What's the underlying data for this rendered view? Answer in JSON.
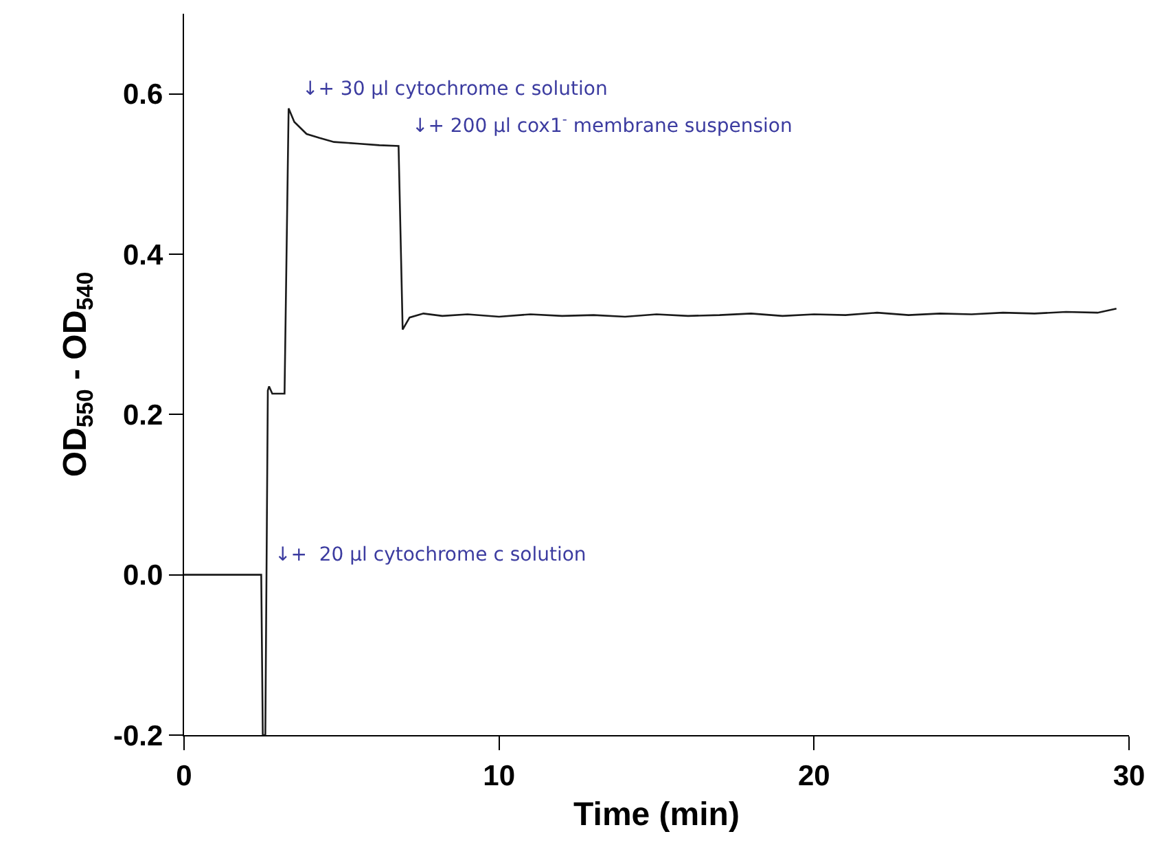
{
  "chart_data": {
    "type": "line",
    "xlabel": "Time (min)",
    "ylabel": "OD$_{550}$ - OD$_{540}$",
    "x": [
      0,
      2.45,
      2.5,
      2.58,
      2.66,
      2.7,
      2.8,
      3.19,
      3.32,
      3.5,
      3.89,
      4.3,
      4.76,
      5.5,
      6.2,
      6.81,
      6.94,
      7.16,
      7.6,
      8.2,
      9,
      10,
      11,
      12,
      13,
      14,
      15,
      16,
      17,
      18,
      19,
      20,
      21,
      22,
      23,
      24,
      25,
      26,
      27,
      28,
      29,
      29.6
    ],
    "series": [
      {
        "color": "#1a1a1a",
        "values": [
          0,
          0,
          -0.2,
          -0.2,
          0.23,
          0.235,
          0.226,
          0.226,
          0.582,
          0.565,
          0.55,
          0.545,
          0.54,
          0.538,
          0.536,
          0.535,
          0.306,
          0.321,
          0.326,
          0.323,
          0.325,
          0.322,
          0.325,
          0.323,
          0.324,
          0.322,
          0.325,
          0.323,
          0.324,
          0.326,
          0.323,
          0.325,
          0.324,
          0.327,
          0.324,
          0.326,
          0.325,
          0.327,
          0.326,
          0.328,
          0.327,
          0.332
        ]
      }
    ],
    "xlim": [
      0,
      30
    ],
    "xticks": [
      0,
      10,
      20,
      30
    ],
    "ylim": [
      -0.2,
      0.7
    ],
    "yticks": [
      -0.2,
      {
        "value": 0,
        "label": "0.0"
      },
      0.2,
      0.4,
      0.6
    ],
    "grid": false,
    "marker": "none",
    "line_style": "solid",
    "annotations": [
      {
        "text": "↓+  20 µl cytochrome c solution",
        "x": 2.45,
        "y": 0
      },
      {
        "text": "↓+ 30 µl cytochrome c solution",
        "x": 3.32,
        "y": 0.582
      },
      {
        "text": "↓+ 200 µl cox1$^{-}$ membrane suspension",
        "x": 6.81,
        "y": 0.535
      }
    ]
  }
}
